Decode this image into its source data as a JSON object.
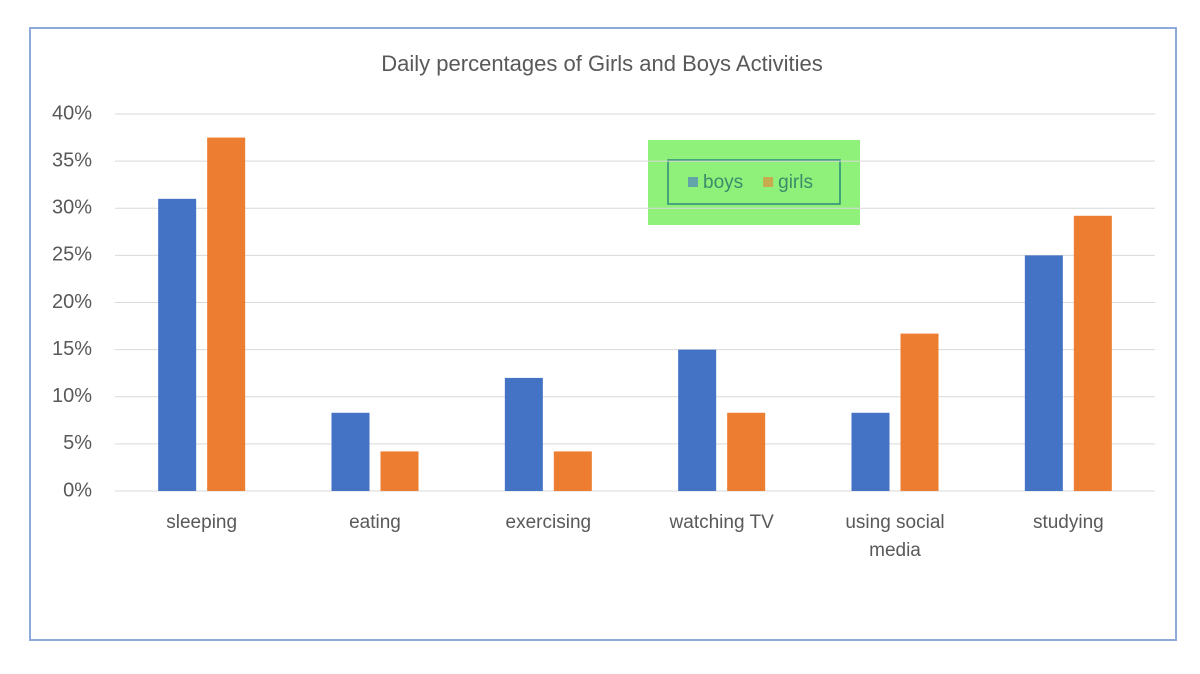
{
  "chart_data": {
    "type": "bar",
    "title": "Daily percentages of Girls and Boys Activities",
    "categories": [
      "sleeping",
      "eating",
      "exercising",
      "watching TV",
      "using social media",
      "studying"
    ],
    "series": [
      {
        "name": "boys",
        "color": "#4472c4",
        "values": [
          31,
          8.3,
          12,
          15,
          8.3,
          25
        ]
      },
      {
        "name": "girls",
        "color": "#ed7d31",
        "values": [
          37.5,
          4.2,
          4.2,
          8.3,
          16.7,
          29.2
        ]
      }
    ],
    "ylim": [
      0,
      40
    ],
    "yticks": [
      {
        "value": 0,
        "label": "0%"
      },
      {
        "value": 5,
        "label": "5%"
      },
      {
        "value": 10,
        "label": "10%"
      },
      {
        "value": 15,
        "label": "15%"
      },
      {
        "value": 20,
        "label": "20%"
      },
      {
        "value": 25,
        "label": "25%"
      },
      {
        "value": 30,
        "label": "30%"
      },
      {
        "value": 35,
        "label": "35%"
      },
      {
        "value": 40,
        "label": "40%"
      }
    ],
    "grid": true
  }
}
